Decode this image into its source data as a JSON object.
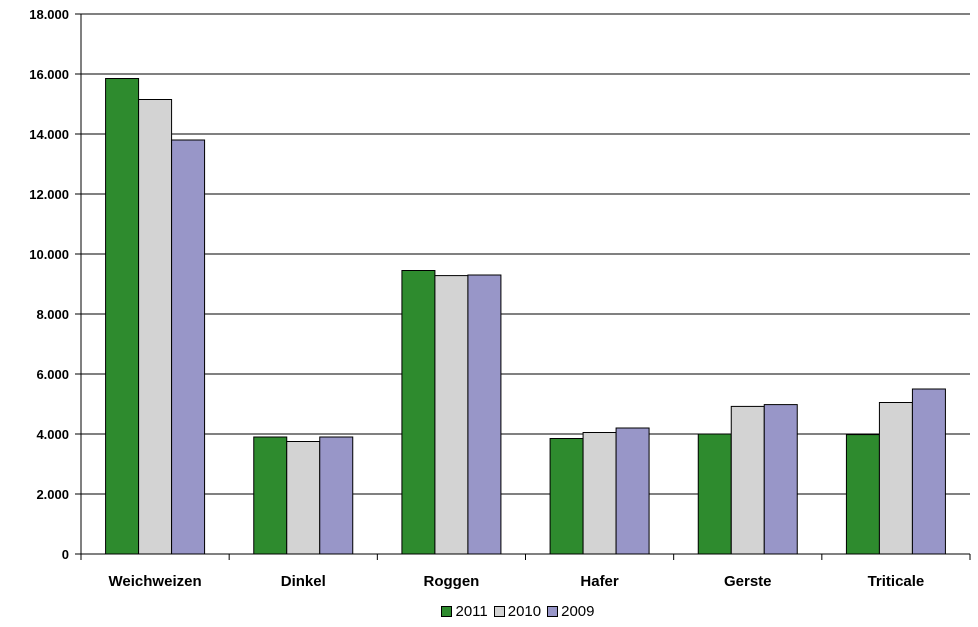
{
  "chart_data": {
    "type": "bar",
    "categories": [
      "Weichweizen",
      "Dinkel",
      "Roggen",
      "Hafer",
      "Gerste",
      "Triticale"
    ],
    "series": [
      {
        "name": "2011",
        "color": "#2e8b2e",
        "values": [
          15850,
          3900,
          9450,
          3850,
          4000,
          3980
        ]
      },
      {
        "name": "2010",
        "color": "#d3d3d3",
        "values": [
          15150,
          3750,
          9280,
          4050,
          4920,
          5050
        ]
      },
      {
        "name": "2009",
        "color": "#9896c8",
        "values": [
          13800,
          3900,
          9300,
          4200,
          4980,
          5500
        ]
      }
    ],
    "yticks": [
      "0",
      "2.000",
      "4.000",
      "6.000",
      "8.000",
      "10.000",
      "12.000",
      "14.000",
      "16.000",
      "18.000"
    ],
    "ylim": [
      0,
      18000
    ],
    "grid": true,
    "legend_position": "bottom"
  }
}
